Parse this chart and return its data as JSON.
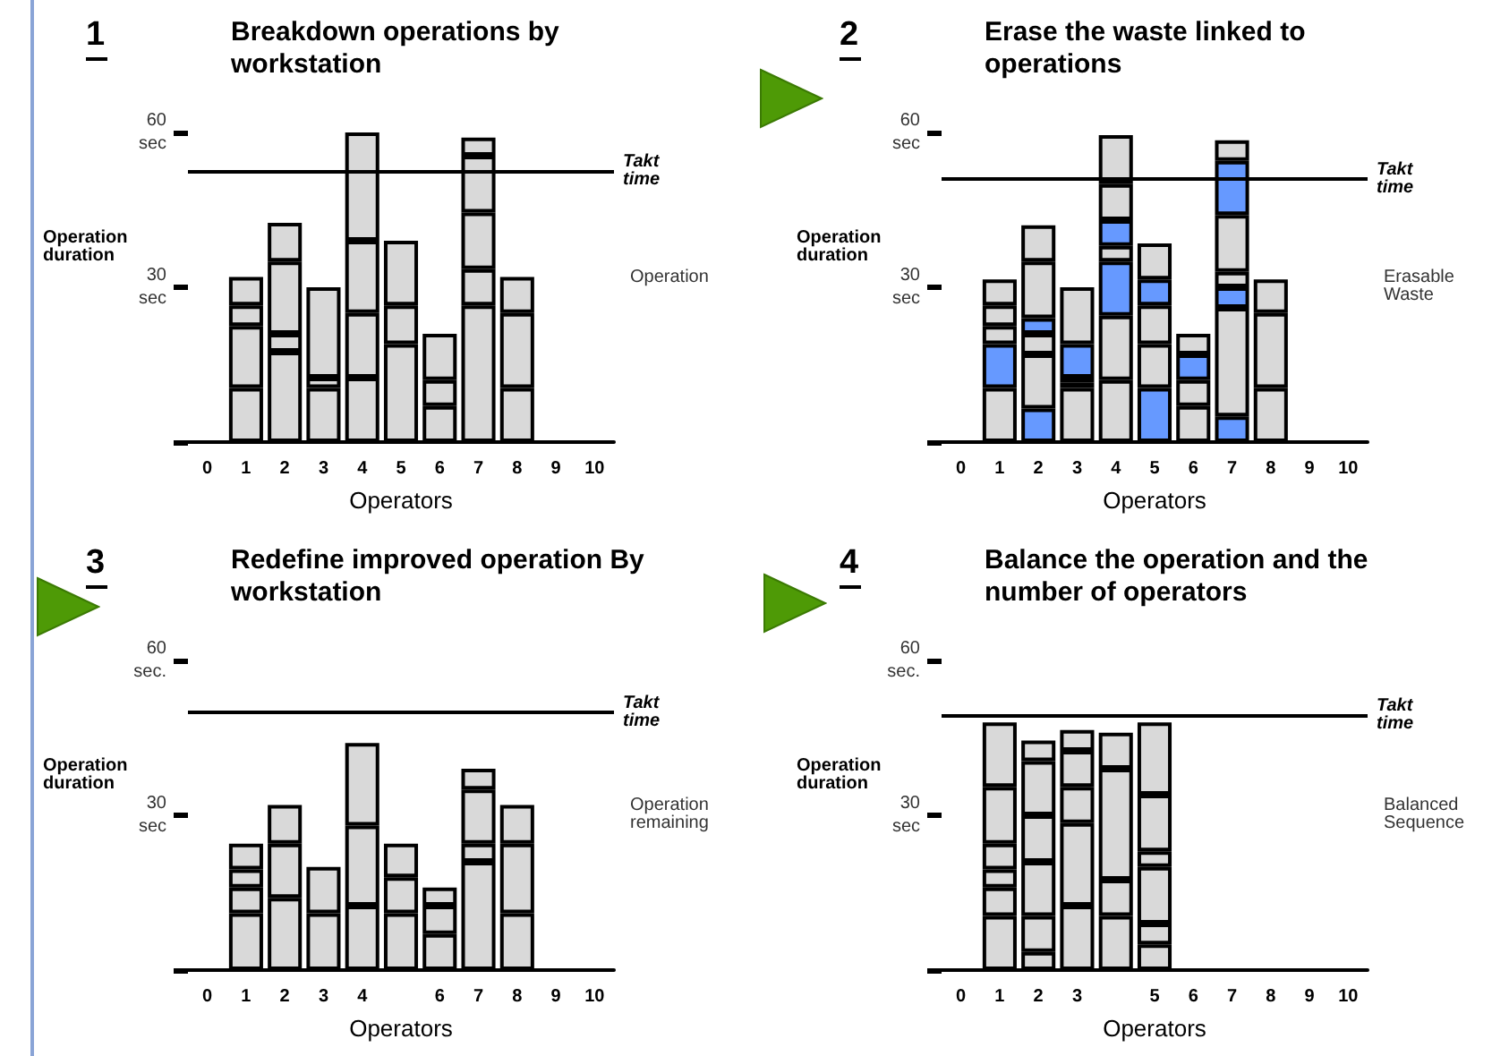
{
  "chart_data": [
    {
      "type": "bar",
      "title": "Breakdown operations by workstation",
      "xlabel": "Operators",
      "ylabel": "Operation duration",
      "annotations": [
        "1",
        "Operation"
      ],
      "stacked": true,
      "grid": false,
      "categories": [
        "0",
        "1",
        "2",
        "3",
        "4",
        "5",
        "6",
        "7",
        "8",
        "9",
        "10"
      ],
      "ylim": [
        0,
        60
      ],
      "yticks": [
        {
          "value": 0,
          "label": null
        },
        {
          "value": 30,
          "label": "30\nsec"
        },
        {
          "value": 60,
          "label": "60\nsec"
        }
      ],
      "ref_lines": [
        {
          "axis": "y",
          "value": 52.5,
          "label": "Takt time"
        }
      ],
      "series": [
        {
          "color": "#d9d9d9",
          "values": [
            null,
            10.5,
            17.5,
            10.5,
            12.5,
            19,
            7,
            26.5,
            10.5,
            null,
            null
          ]
        },
        {
          "color": "#d9d9d9",
          "values": [
            null,
            12,
            3.5,
            2,
            12.5,
            7.5,
            5,
            7,
            14.5,
            null,
            null
          ]
        },
        {
          "color": "#d9d9d9",
          "values": [
            null,
            4,
            14,
            17.5,
            14,
            12.5,
            9,
            11,
            7,
            null,
            null
          ]
        },
        {
          "color": "#d9d9d9",
          "values": [
            null,
            5.5,
            7.5,
            null,
            21,
            null,
            null,
            11,
            null,
            null,
            null
          ]
        },
        {
          "color": "#d9d9d9",
          "values": [
            null,
            null,
            null,
            null,
            null,
            null,
            null,
            3.5,
            null,
            null,
            null
          ]
        }
      ]
    },
    {
      "type": "bar",
      "title": "Erase the waste linked to operations",
      "xlabel": "Operators",
      "ylabel": "Operation duration",
      "annotations": [
        "2",
        "Erasable Waste"
      ],
      "stacked": true,
      "grid": false,
      "categories": [
        "0",
        "1",
        "2",
        "3",
        "4",
        "5",
        "6",
        "7",
        "8",
        "9",
        "10"
      ],
      "ylim": [
        0,
        60
      ],
      "yticks": [
        {
          "value": 0,
          "label": null
        },
        {
          "value": 30,
          "label": "30\nsec"
        },
        {
          "value": 60,
          "label": "60\nsec"
        }
      ],
      "ref_lines": [
        {
          "axis": "y",
          "value": 51,
          "label": "Takt time"
        }
      ],
      "series": [
        {
          "values": [
            null,
            10.5,
            6.5,
            10.5,
            12,
            10.5,
            7,
            5,
            10.5,
            null,
            null
          ],
          "colors": [
            null,
            "#d9d9d9",
            "#6699ff",
            "#d9d9d9",
            "#d9d9d9",
            "#6699ff",
            "#d9d9d9",
            "#6699ff",
            "#d9d9d9",
            null,
            null
          ]
        },
        {
          "values": [
            null,
            8.5,
            10.5,
            1,
            12.5,
            8.5,
            5,
            21,
            14.5,
            null,
            null
          ],
          "colors": [
            null,
            "#6699ff",
            "#d9d9d9",
            "#6699ff",
            "#d9d9d9",
            "#d9d9d9",
            "#d9d9d9",
            "#d9d9d9",
            "#d9d9d9",
            null,
            null
          ]
        },
        {
          "values": [
            null,
            3.5,
            4,
            1,
            10.5,
            7.5,
            5,
            4,
            6.5,
            null,
            null
          ],
          "colors": [
            null,
            "#d9d9d9",
            "#d9d9d9",
            "#d9d9d9",
            "#6699ff",
            "#d9d9d9",
            "#6699ff",
            "#6699ff",
            "#d9d9d9",
            null,
            null
          ]
        },
        {
          "values": [
            null,
            4,
            3,
            6.5,
            3,
            5,
            4,
            3,
            null,
            null,
            null
          ],
          "colors": [
            null,
            "#d9d9d9",
            "#6699ff",
            "#6699ff",
            "#d9d9d9",
            "#6699ff",
            "#d9d9d9",
            "#d9d9d9",
            null,
            null,
            null
          ]
        },
        {
          "values": [
            null,
            5,
            11,
            11,
            5,
            7,
            null,
            11,
            null,
            null,
            null
          ],
          "colors": [
            null,
            "#d9d9d9",
            "#d9d9d9",
            "#d9d9d9",
            "#6699ff",
            "#d9d9d9",
            null,
            "#d9d9d9",
            null,
            null,
            null
          ]
        },
        {
          "values": [
            null,
            null,
            7,
            null,
            7,
            null,
            null,
            10.5,
            null,
            null,
            null
          ],
          "colors": [
            null,
            null,
            "#d9d9d9",
            null,
            "#d9d9d9",
            null,
            null,
            "#6699ff",
            null,
            null,
            null
          ]
        },
        {
          "values": [
            null,
            null,
            null,
            null,
            9.5,
            null,
            null,
            4,
            null,
            null,
            null
          ],
          "colors": [
            null,
            null,
            null,
            null,
            "#d9d9d9",
            null,
            null,
            "#d9d9d9",
            null,
            null,
            null
          ]
        }
      ]
    },
    {
      "type": "bar",
      "title": "Redefine improved operation By workstation",
      "xlabel": "Operators",
      "ylabel": "Operation duration",
      "annotations": [
        "3",
        "Operation remaining"
      ],
      "stacked": true,
      "grid": false,
      "categories": [
        "0",
        "1",
        "2",
        "3",
        "4",
        null,
        "6",
        "7",
        "8",
        "9",
        "10"
      ],
      "ylim": [
        0,
        60
      ],
      "yticks": [
        {
          "value": 0,
          "label": null
        },
        {
          "value": 30,
          "label": "30\nsec"
        },
        {
          "value": 60,
          "label": "60\nsec."
        }
      ],
      "ref_lines": [
        {
          "axis": "y",
          "value": 50,
          "label": "Takt time"
        }
      ],
      "series": [
        {
          "color": "#d9d9d9",
          "values": [
            null,
            11,
            14,
            11,
            12.5,
            11,
            7,
            21,
            11,
            null,
            null
          ]
        },
        {
          "color": "#d9d9d9",
          "values": [
            null,
            5,
            10.5,
            9,
            15.5,
            7,
            5.5,
            3.5,
            13.5,
            null,
            null
          ]
        },
        {
          "color": "#d9d9d9",
          "values": [
            null,
            3.5,
            7.5,
            null,
            16,
            6.5,
            3.5,
            10.5,
            7.5,
            null,
            null
          ]
        },
        {
          "color": "#d9d9d9",
          "values": [
            null,
            5,
            null,
            null,
            null,
            null,
            null,
            4,
            null,
            null,
            null
          ]
        }
      ]
    },
    {
      "type": "bar",
      "title": "Balance the operation and the number of operators",
      "xlabel": "Operators",
      "ylabel": "Operation duration",
      "annotations": [
        "4",
        "Balanced Sequence"
      ],
      "stacked": true,
      "grid": false,
      "categories": [
        "0",
        "1",
        "2",
        "3",
        null,
        "5",
        "6",
        "7",
        "8",
        "9",
        "10"
      ],
      "ylim": [
        0,
        60
      ],
      "yticks": [
        {
          "value": 0,
          "label": null
        },
        {
          "value": 30,
          "label": "30\nsec"
        },
        {
          "value": 60,
          "label": "60\nsec."
        }
      ],
      "ref_lines": [
        {
          "axis": "y",
          "value": 49.5,
          "label": "Takt time"
        }
      ],
      "series": [
        {
          "color": "#d9d9d9",
          "values": [
            null,
            10.5,
            3.5,
            12.5,
            10.5,
            5,
            null,
            null,
            null,
            null,
            null
          ]
        },
        {
          "color": "#d9d9d9",
          "values": [
            null,
            5.5,
            7,
            16,
            7,
            4,
            null,
            null,
            null,
            null,
            null
          ]
        },
        {
          "color": "#d9d9d9",
          "values": [
            null,
            3.5,
            10.5,
            7,
            21.5,
            11,
            null,
            null,
            null,
            null,
            null
          ]
        },
        {
          "color": "#d9d9d9",
          "values": [
            null,
            5,
            9,
            7,
            7,
            3,
            null,
            null,
            null,
            null,
            null
          ]
        },
        {
          "color": "#d9d9d9",
          "values": [
            null,
            11,
            10.5,
            4,
            null,
            11,
            null,
            null,
            null,
            null,
            null
          ]
        },
        {
          "color": "#d9d9d9",
          "values": [
            null,
            12.5,
            4,
            null,
            null,
            14,
            null,
            null,
            null,
            null,
            null
          ]
        }
      ]
    }
  ]
}
